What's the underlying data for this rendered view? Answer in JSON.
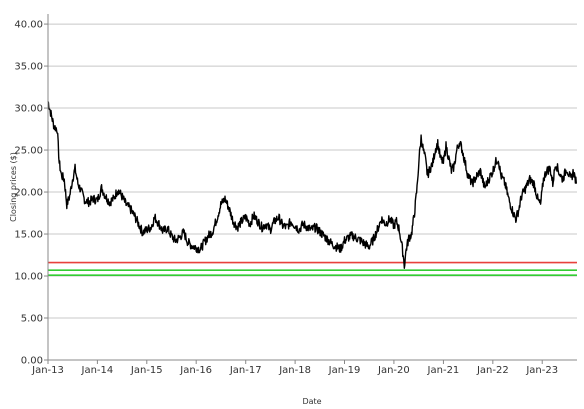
{
  "chart_data": {
    "type": "line",
    "title": "",
    "xlabel": "Date",
    "ylabel": "Closing prices ($)",
    "ylim": [
      0,
      41.2
    ],
    "xlim": [
      "2013-01-01",
      "2023-09-15"
    ],
    "grid": {
      "horizontal": true,
      "vertical": false
    },
    "legend": "none",
    "y_ticks": [
      {
        "value": 0,
        "label": "0.00"
      },
      {
        "value": 5,
        "label": "5.00"
      },
      {
        "value": 10,
        "label": "10.00"
      },
      {
        "value": 15,
        "label": "15.00"
      },
      {
        "value": 20,
        "label": "20.00"
      },
      {
        "value": 25,
        "label": "25.00"
      },
      {
        "value": 30,
        "label": "30.00"
      },
      {
        "value": 35,
        "label": "35.00"
      },
      {
        "value": 40,
        "label": "40.00"
      }
    ],
    "x_ticks": [
      {
        "date": "2013-01-01",
        "label": "Jan-13"
      },
      {
        "date": "2014-01-01",
        "label": "Jan-14"
      },
      {
        "date": "2015-01-01",
        "label": "Jan-15"
      },
      {
        "date": "2016-01-01",
        "label": "Jan-16"
      },
      {
        "date": "2017-01-01",
        "label": "Jan-17"
      },
      {
        "date": "2018-01-01",
        "label": "Jan-18"
      },
      {
        "date": "2019-01-01",
        "label": "Jan-19"
      },
      {
        "date": "2020-01-01",
        "label": "Jan-20"
      },
      {
        "date": "2021-01-01",
        "label": "Jan-21"
      },
      {
        "date": "2022-01-01",
        "label": "Jan-22"
      },
      {
        "date": "2023-01-01",
        "label": "Jan-23"
      }
    ],
    "reference_lines": [
      {
        "value": 11.6,
        "color": "#e8413c"
      },
      {
        "value": 10.7,
        "color": "#33cc33"
      },
      {
        "value": 10.1,
        "color": "#33cc33"
      }
    ],
    "series": [
      {
        "color": "#000000",
        "points": [
          [
            "2013-01-01",
            30.8
          ],
          [
            "2013-01-20",
            29.5
          ],
          [
            "2013-02-15",
            27.8
          ],
          [
            "2013-03-10",
            27.5
          ],
          [
            "2013-03-25",
            23.5
          ],
          [
            "2013-04-10",
            22.0
          ],
          [
            "2013-05-01",
            21.5
          ],
          [
            "2013-05-20",
            18.5
          ],
          [
            "2013-06-10",
            19.5
          ],
          [
            "2013-07-01",
            21.5
          ],
          [
            "2013-07-20",
            22.8
          ],
          [
            "2013-08-10",
            21.0
          ],
          [
            "2013-09-01",
            20.2
          ],
          [
            "2013-10-01",
            19.0
          ],
          [
            "2013-11-01",
            18.8
          ],
          [
            "2013-12-01",
            19.2
          ],
          [
            "2014-01-01",
            19.0
          ],
          [
            "2014-02-01",
            20.5
          ],
          [
            "2014-03-01",
            19.5
          ],
          [
            "2014-04-01",
            18.8
          ],
          [
            "2014-05-01",
            19.2
          ],
          [
            "2014-06-01",
            20.3
          ],
          [
            "2014-07-01",
            19.5
          ],
          [
            "2014-08-01",
            18.5
          ],
          [
            "2014-09-01",
            18.0
          ],
          [
            "2014-10-01",
            17.2
          ],
          [
            "2014-11-01",
            16.2
          ],
          [
            "2014-12-01",
            15.2
          ],
          [
            "2015-01-01",
            15.5
          ],
          [
            "2015-02-01",
            15.8
          ],
          [
            "2015-03-01",
            17.0
          ],
          [
            "2015-04-01",
            16.2
          ],
          [
            "2015-05-01",
            15.3
          ],
          [
            "2015-06-01",
            15.7
          ],
          [
            "2015-07-01",
            14.8
          ],
          [
            "2015-08-01",
            14.2
          ],
          [
            "2015-09-01",
            14.6
          ],
          [
            "2015-10-01",
            15.2
          ],
          [
            "2015-11-01",
            14.0
          ],
          [
            "2015-12-01",
            13.6
          ],
          [
            "2016-01-01",
            13.4
          ],
          [
            "2016-02-01",
            13.2
          ],
          [
            "2016-03-01",
            14.0
          ],
          [
            "2016-04-01",
            14.8
          ],
          [
            "2016-05-01",
            15.3
          ],
          [
            "2016-06-01",
            16.8
          ],
          [
            "2016-07-01",
            18.5
          ],
          [
            "2016-08-01",
            19.2
          ],
          [
            "2016-09-01",
            18.0
          ],
          [
            "2016-10-01",
            16.5
          ],
          [
            "2016-11-01",
            15.8
          ],
          [
            "2016-12-01",
            16.5
          ],
          [
            "2017-01-01",
            17.0
          ],
          [
            "2017-02-01",
            16.2
          ],
          [
            "2017-03-01",
            17.2
          ],
          [
            "2017-04-01",
            16.5
          ],
          [
            "2017-05-01",
            15.8
          ],
          [
            "2017-06-01",
            16.2
          ],
          [
            "2017-07-01",
            15.5
          ],
          [
            "2017-08-01",
            16.5
          ],
          [
            "2017-09-01",
            17.0
          ],
          [
            "2017-10-01",
            16.0
          ],
          [
            "2017-11-01",
            15.8
          ],
          [
            "2017-12-01",
            16.5
          ],
          [
            "2018-01-01",
            16.0
          ],
          [
            "2018-02-01",
            15.5
          ],
          [
            "2018-03-01",
            16.2
          ],
          [
            "2018-04-01",
            15.8
          ],
          [
            "2018-05-01",
            15.5
          ],
          [
            "2018-06-01",
            15.8
          ],
          [
            "2018-07-01",
            15.3
          ],
          [
            "2018-08-01",
            14.8
          ],
          [
            "2018-09-01",
            14.3
          ],
          [
            "2018-10-01",
            13.8
          ],
          [
            "2018-11-01",
            13.5
          ],
          [
            "2018-12-01",
            13.2
          ],
          [
            "2019-01-01",
            14.2
          ],
          [
            "2019-02-01",
            14.6
          ],
          [
            "2019-03-01",
            14.8
          ],
          [
            "2019-04-01",
            14.5
          ],
          [
            "2019-05-01",
            14.2
          ],
          [
            "2019-06-01",
            13.8
          ],
          [
            "2019-07-01",
            13.5
          ],
          [
            "2019-08-01",
            14.3
          ],
          [
            "2019-09-01",
            15.5
          ],
          [
            "2019-10-01",
            16.8
          ],
          [
            "2019-11-01",
            16.2
          ],
          [
            "2019-12-01",
            16.8
          ],
          [
            "2020-01-01",
            16.0
          ],
          [
            "2020-01-20",
            16.5
          ],
          [
            "2020-02-10",
            15.5
          ],
          [
            "2020-02-25",
            14.0
          ],
          [
            "2020-03-10",
            12.5
          ],
          [
            "2020-03-18",
            11.2
          ],
          [
            "2020-04-01",
            13.2
          ],
          [
            "2020-04-20",
            14.5
          ],
          [
            "2020-05-10",
            15.0
          ],
          [
            "2020-06-01",
            17.5
          ],
          [
            "2020-06-20",
            20.5
          ],
          [
            "2020-07-05",
            24.0
          ],
          [
            "2020-07-20",
            26.5
          ],
          [
            "2020-08-05",
            25.0
          ],
          [
            "2020-08-20",
            24.0
          ],
          [
            "2020-09-05",
            22.0
          ],
          [
            "2020-09-25",
            22.8
          ],
          [
            "2020-10-15",
            23.5
          ],
          [
            "2020-11-01",
            25.0
          ],
          [
            "2020-11-20",
            25.8
          ],
          [
            "2020-12-10",
            24.0
          ],
          [
            "2021-01-01",
            23.5
          ],
          [
            "2021-01-20",
            25.5
          ],
          [
            "2021-02-10",
            24.0
          ],
          [
            "2021-03-01",
            22.5
          ],
          [
            "2021-03-20",
            23.0
          ],
          [
            "2021-04-10",
            25.0
          ],
          [
            "2021-05-01",
            26.0
          ],
          [
            "2021-05-20",
            25.0
          ],
          [
            "2021-06-10",
            23.5
          ],
          [
            "2021-07-01",
            22.0
          ],
          [
            "2021-08-01",
            21.0
          ],
          [
            "2021-09-01",
            21.8
          ],
          [
            "2021-10-01",
            22.5
          ],
          [
            "2021-11-01",
            20.5
          ],
          [
            "2021-12-01",
            21.5
          ],
          [
            "2022-01-01",
            22.5
          ],
          [
            "2022-01-20",
            23.5
          ],
          [
            "2022-02-10",
            24.0
          ],
          [
            "2022-03-01",
            22.0
          ],
          [
            "2022-04-01",
            21.0
          ],
          [
            "2022-05-01",
            19.0
          ],
          [
            "2022-06-01",
            17.5
          ],
          [
            "2022-06-20",
            16.8
          ],
          [
            "2022-07-10",
            17.8
          ],
          [
            "2022-08-01",
            19.5
          ],
          [
            "2022-09-01",
            20.5
          ],
          [
            "2022-10-01",
            21.5
          ],
          [
            "2022-11-01",
            21.0
          ],
          [
            "2022-12-01",
            19.0
          ],
          [
            "2022-12-20",
            18.5
          ],
          [
            "2023-01-10",
            21.5
          ],
          [
            "2023-02-01",
            22.5
          ],
          [
            "2023-03-01",
            22.8
          ],
          [
            "2023-03-20",
            21.0
          ],
          [
            "2023-04-10",
            23.5
          ],
          [
            "2023-05-01",
            22.5
          ],
          [
            "2023-06-01",
            21.5
          ],
          [
            "2023-07-01",
            22.8
          ],
          [
            "2023-08-01",
            21.5
          ],
          [
            "2023-08-20",
            22.5
          ],
          [
            "2023-09-10",
            21.0
          ]
        ]
      }
    ]
  }
}
